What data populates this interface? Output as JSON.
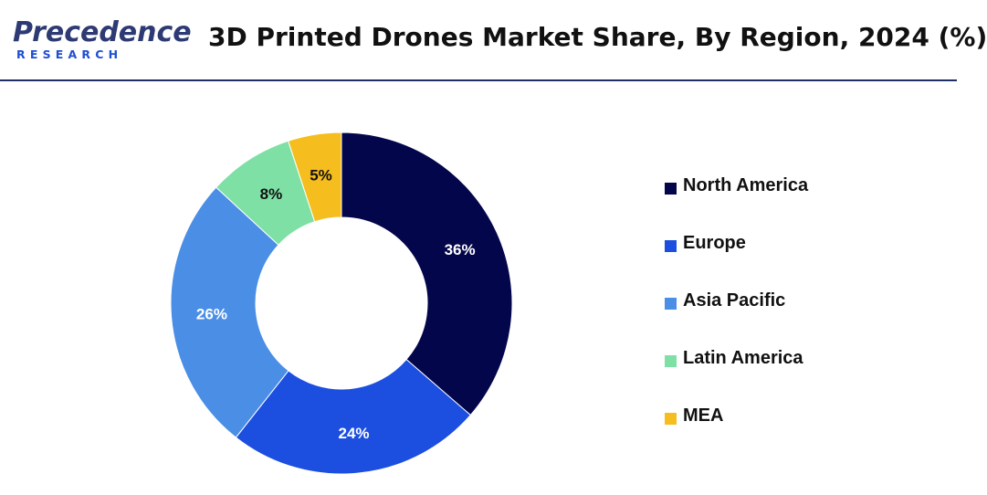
{
  "header": {
    "logo_main": "Precedence",
    "logo_sub": "RESEARCH",
    "title": "3D Printed Drones Market Share, By Region, 2024 (%)"
  },
  "chart_data": {
    "type": "pie",
    "style": "donut",
    "title": "3D Printed Drones Market Share, By Region, 2024 (%)",
    "categories": [
      "North America",
      "Europe",
      "Asia Pacific",
      "Latin America",
      "MEA"
    ],
    "values": [
      36,
      24,
      26,
      8,
      5
    ],
    "labels": [
      "36%",
      "24%",
      "26%",
      "8%",
      "5%"
    ],
    "colors": [
      "#03064a",
      "#1c4fe0",
      "#4a8ee6",
      "#7ee0a4",
      "#f5bd1d"
    ],
    "label_colors": [
      "#ffffff",
      "#ffffff",
      "#ffffff",
      "#111111",
      "#111111"
    ],
    "legend_position": "right"
  }
}
